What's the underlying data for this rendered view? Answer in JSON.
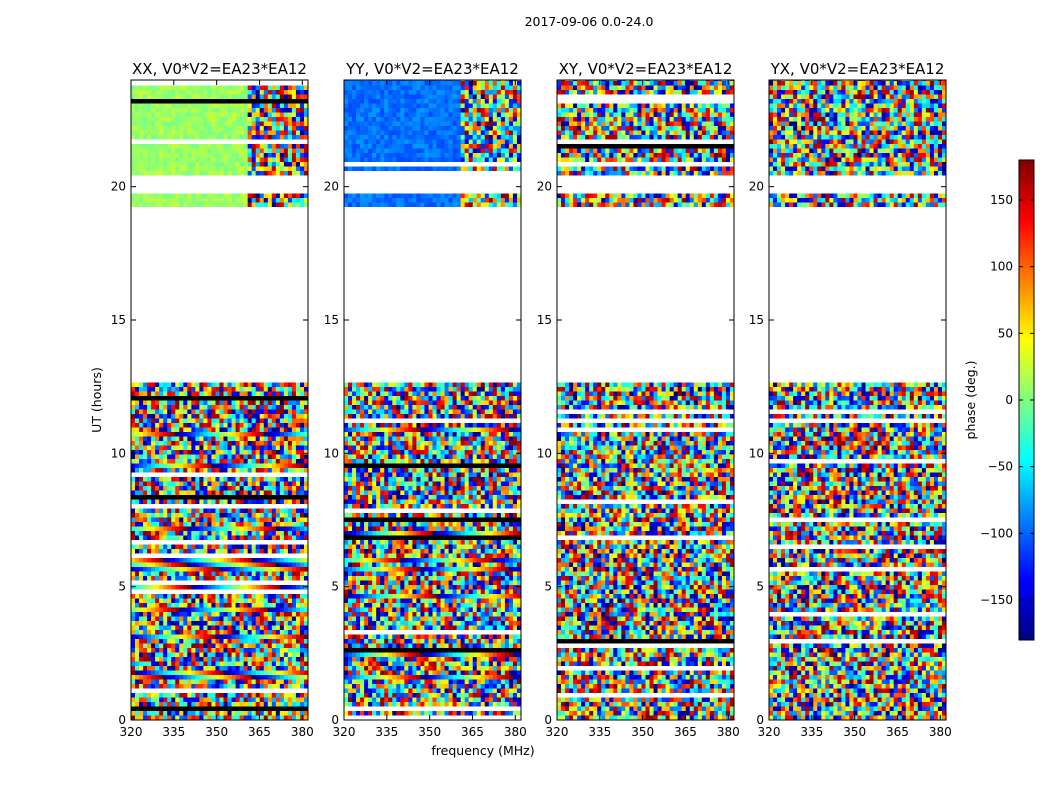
{
  "figure_title": "2017-09-06 0.0-24.0",
  "chart_data": {
    "type": "heatmap",
    "title": "2017-09-06 0.0-24.0",
    "xlabel": "frequency (MHz)",
    "ylabel": "UT (hours)",
    "xlim": [
      320,
      382
    ],
    "ylim": [
      0,
      24
    ],
    "x_ticks": [
      320,
      335,
      350,
      365,
      380
    ],
    "y_ticks": [
      0,
      5,
      10,
      15,
      20
    ],
    "panels": [
      {
        "id": "xx",
        "title": "XX, V0*V2=EA23*EA12",
        "base_phase": 10
      },
      {
        "id": "yy",
        "title": "YY, V0*V2=EA23*EA12",
        "base_phase": -95
      },
      {
        "id": "xy",
        "title": "XY, V0*V2=EA23*EA12",
        "base_phase": null
      },
      {
        "id": "yx",
        "title": "YX, V0*V2=EA23*EA12",
        "base_phase": null
      }
    ],
    "data_gaps_hours": [
      [
        12.6,
        19.1
      ],
      [
        19.6,
        20.3
      ]
    ],
    "colorbar": {
      "label": "phase (deg.)",
      "min": -180,
      "max": 180,
      "ticks": [
        -150,
        -100,
        -50,
        0,
        50,
        100,
        150
      ],
      "tick_labels": [
        "−150",
        "−100",
        "−50",
        "0",
        "50",
        "100",
        "150"
      ],
      "colormap": "jet"
    }
  },
  "colors": {
    "axes": "#000000",
    "background": "#ffffff",
    "jet_stops": [
      "#00007f",
      "#0000ff",
      "#007fff",
      "#00ffff",
      "#7fff7f",
      "#ffff00",
      "#ff7f00",
      "#ff0000",
      "#7f0000"
    ]
  }
}
